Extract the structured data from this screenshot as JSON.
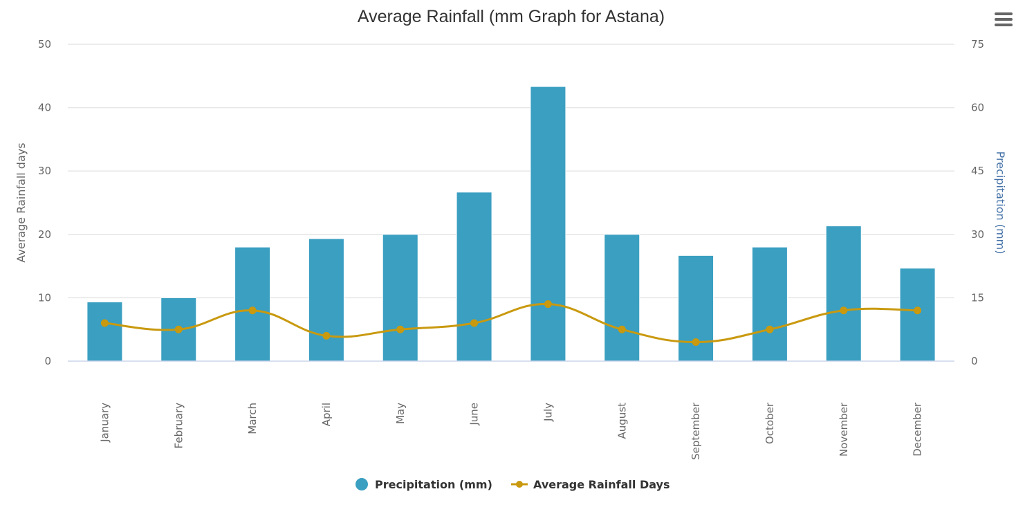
{
  "menu": {
    "icon": "hamburger-menu-icon"
  },
  "colors": {
    "bars": "#3a9fc1",
    "line": "#c9990f",
    "grid": "#e6e6e6",
    "axis": "#ccd6eb",
    "right_axis_title": "#4572a7"
  },
  "chart_data": {
    "type": "bar",
    "title": "Average Rainfall (mm Graph for Astana)",
    "categories": [
      "January",
      "February",
      "March",
      "April",
      "May",
      "June",
      "July",
      "August",
      "September",
      "October",
      "November",
      "December"
    ],
    "xlabel": "",
    "y_left": {
      "label": "Average Rainfall days",
      "ylim": [
        0,
        50
      ],
      "ticks": [
        0,
        10,
        20,
        30,
        40,
        50
      ]
    },
    "y_right": {
      "label": "Precipitation (mm)",
      "ylim": [
        0,
        75
      ],
      "ticks": [
        0,
        15,
        30,
        45,
        60,
        75
      ]
    },
    "grid": true,
    "legend": "bottom-center",
    "series": [
      {
        "name": "Precipitation (mm)",
        "type": "bar",
        "axis": "right",
        "values": [
          14,
          15,
          27,
          29,
          30,
          40,
          65,
          30,
          25,
          27,
          32,
          22
        ]
      },
      {
        "name": "Average Rainfall Days",
        "type": "spline",
        "axis": "left",
        "values": [
          6,
          5,
          8,
          4,
          5,
          6,
          9,
          5,
          3,
          5,
          8,
          8
        ]
      }
    ]
  }
}
